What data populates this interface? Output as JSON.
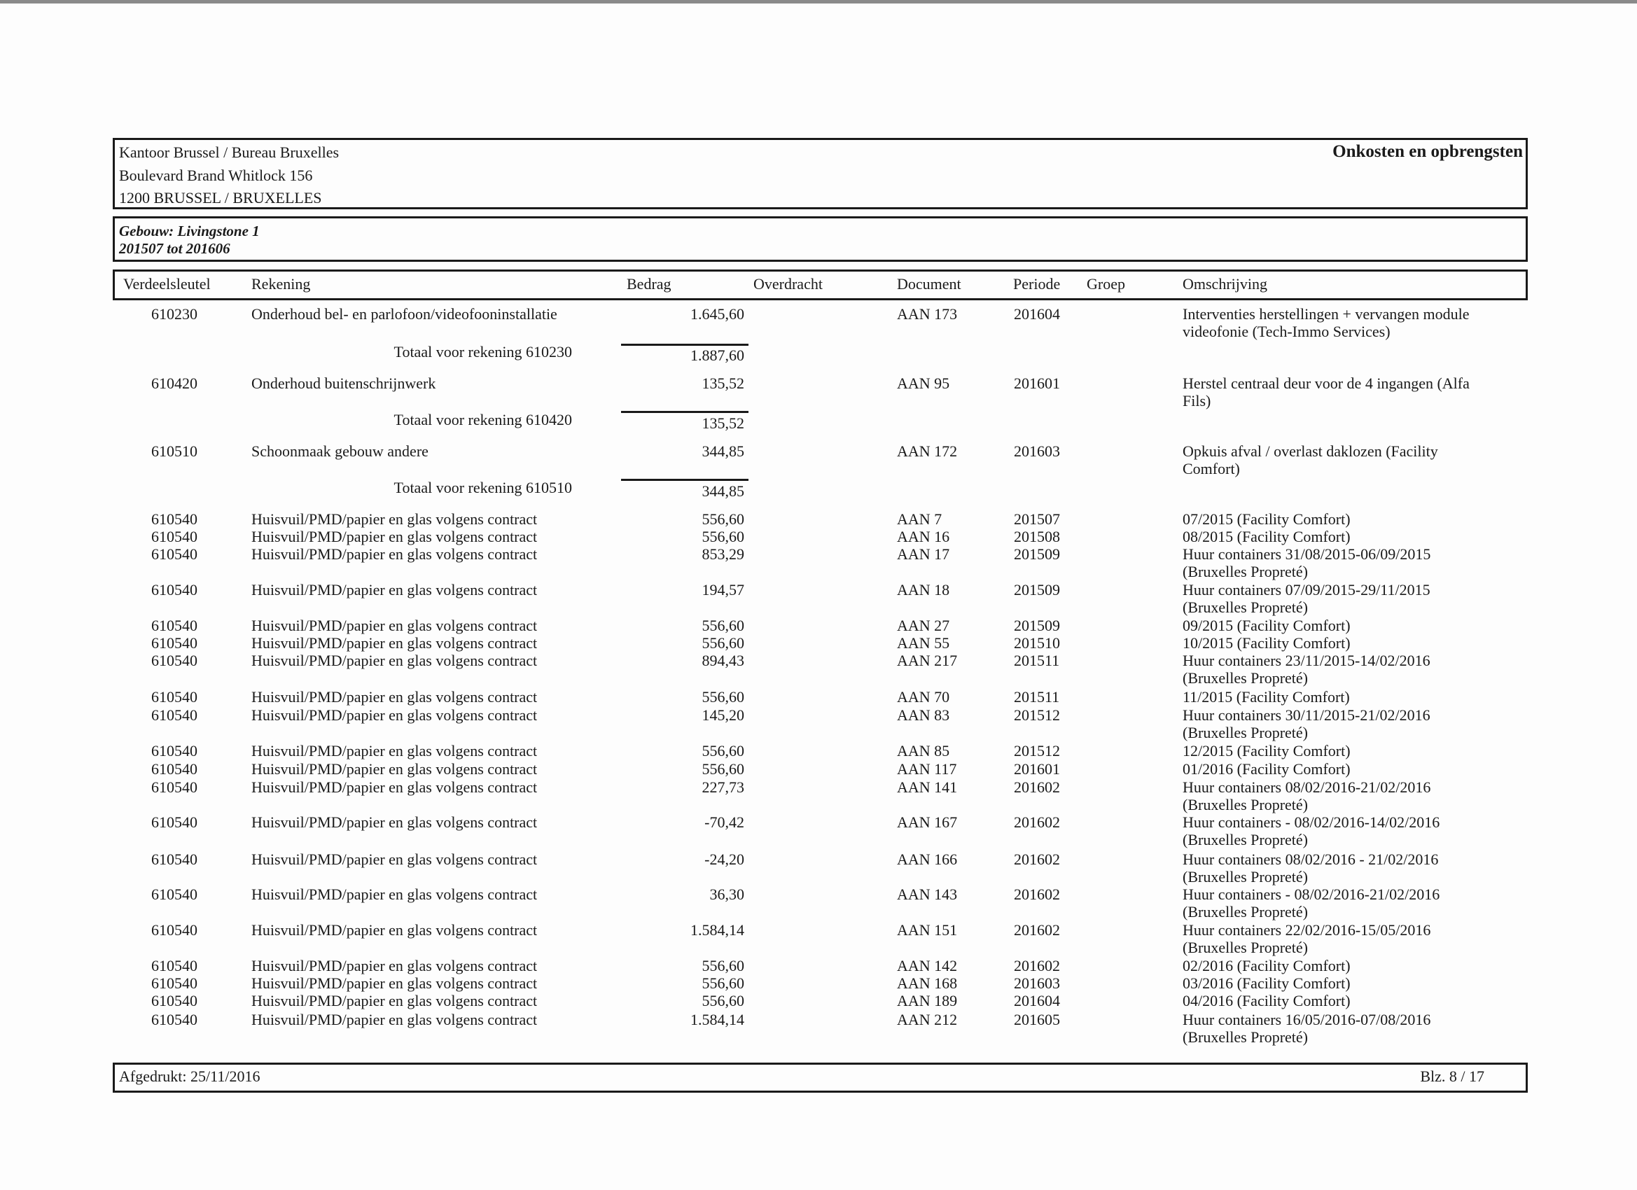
{
  "header": {
    "office_line1": "Kantoor Brussel / Bureau Bruxelles",
    "office_line2": "Boulevard Brand Whitlock 156",
    "office_line3": "1200 BRUSSEL / BRUXELLES",
    "report_title": "Onkosten en opbrengsten"
  },
  "building": {
    "name": "Gebouw: Livingstone 1",
    "period": "201507 tot 201606"
  },
  "columns": {
    "verdeelsleutel": "Verdeelsleutel",
    "rekening": "Rekening",
    "bedrag": "Bedrag",
    "overdracht": "Overdracht",
    "document": "Document",
    "periode": "Periode",
    "groep": "Groep",
    "omschrijving": "Omschrijving"
  },
  "rows": [
    {
      "type": "entry",
      "key": "610230",
      "account": "Onderhoud bel- en parlofoon/videofooninstallatie",
      "amount": "1.645,60",
      "document": "AAN 173",
      "period": "201604",
      "description": [
        "Interventies herstellingen + vervangen module",
        "videofonie (Tech-Immo Services)"
      ]
    },
    {
      "type": "total",
      "label": "Totaal voor rekening 610230",
      "amount": "1.887,60"
    },
    {
      "type": "entry",
      "key": "610420",
      "account": "Onderhoud buitenschrijnwerk",
      "amount": "135,52",
      "document": "AAN 95",
      "period": "201601",
      "description": [
        "Herstel centraal deur voor de 4 ingangen (Alfa",
        "Fils)"
      ]
    },
    {
      "type": "total",
      "label": "Totaal voor rekening 610420",
      "amount": "135,52"
    },
    {
      "type": "entry",
      "key": "610510",
      "account": "Schoonmaak gebouw andere",
      "amount": "344,85",
      "document": "AAN 172",
      "period": "201603",
      "description": [
        "Opkuis afval / overlast daklozen (Facility",
        "Comfort)"
      ]
    },
    {
      "type": "total",
      "label": "Totaal voor rekening 610510",
      "amount": "344,85"
    },
    {
      "type": "entry",
      "key": "610540",
      "account": "Huisvuil/PMD/papier en glas volgens contract",
      "amount": "556,60",
      "document": "AAN 7",
      "period": "201507",
      "description": [
        "07/2015 (Facility Comfort)"
      ]
    },
    {
      "type": "entry",
      "key": "610540",
      "account": "Huisvuil/PMD/papier en glas volgens contract",
      "amount": "556,60",
      "document": "AAN 16",
      "period": "201508",
      "description": [
        "08/2015 (Facility Comfort)"
      ]
    },
    {
      "type": "entry",
      "key": "610540",
      "account": "Huisvuil/PMD/papier en glas volgens contract",
      "amount": "853,29",
      "document": "AAN 17",
      "period": "201509",
      "description": [
        "Huur containers 31/08/2015-06/09/2015",
        "(Bruxelles Propreté)"
      ]
    },
    {
      "type": "entry",
      "key": "610540",
      "account": "Huisvuil/PMD/papier en glas volgens contract",
      "amount": "194,57",
      "document": "AAN 18",
      "period": "201509",
      "description": [
        "Huur containers 07/09/2015-29/11/2015",
        "(Bruxelles Propreté)"
      ]
    },
    {
      "type": "entry",
      "key": "610540",
      "account": "Huisvuil/PMD/papier en glas volgens contract",
      "amount": "556,60",
      "document": "AAN 27",
      "period": "201509",
      "description": [
        "09/2015 (Facility Comfort)"
      ]
    },
    {
      "type": "entry",
      "key": "610540",
      "account": "Huisvuil/PMD/papier en glas volgens contract",
      "amount": "556,60",
      "document": "AAN 55",
      "period": "201510",
      "description": [
        "10/2015 (Facility Comfort)"
      ]
    },
    {
      "type": "entry",
      "key": "610540",
      "account": "Huisvuil/PMD/papier en glas volgens contract",
      "amount": "894,43",
      "document": "AAN 217",
      "period": "201511",
      "description": [
        "Huur containers 23/11/2015-14/02/2016",
        "(Bruxelles Propreté)"
      ]
    },
    {
      "type": "entry",
      "key": "610540",
      "account": "Huisvuil/PMD/papier en glas volgens contract",
      "amount": "556,60",
      "document": "AAN 70",
      "period": "201511",
      "description": [
        "11/2015 (Facility Comfort)"
      ]
    },
    {
      "type": "entry",
      "key": "610540",
      "account": "Huisvuil/PMD/papier en glas volgens contract",
      "amount": "145,20",
      "document": "AAN 83",
      "period": "201512",
      "description": [
        "Huur containers 30/11/2015-21/02/2016",
        "(Bruxelles Propreté)"
      ]
    },
    {
      "type": "entry",
      "key": "610540",
      "account": "Huisvuil/PMD/papier en glas volgens contract",
      "amount": "556,60",
      "document": "AAN 85",
      "period": "201512",
      "description": [
        "12/2015 (Facility Comfort)"
      ]
    },
    {
      "type": "entry",
      "key": "610540",
      "account": "Huisvuil/PMD/papier en glas volgens contract",
      "amount": "556,60",
      "document": "AAN 117",
      "period": "201601",
      "description": [
        "01/2016 (Facility Comfort)"
      ]
    },
    {
      "type": "entry",
      "key": "610540",
      "account": "Huisvuil/PMD/papier en glas volgens contract",
      "amount": "227,73",
      "document": "AAN 141",
      "period": "201602",
      "description": [
        "Huur containers 08/02/2016-21/02/2016",
        "(Bruxelles Propreté)"
      ]
    },
    {
      "type": "entry",
      "key": "610540",
      "account": "Huisvuil/PMD/papier en glas volgens contract",
      "amount": "-70,42",
      "document": "AAN 167",
      "period": "201602",
      "description": [
        "Huur containers - 08/02/2016-14/02/2016",
        "(Bruxelles Propreté)"
      ]
    },
    {
      "type": "entry",
      "key": "610540",
      "account": "Huisvuil/PMD/papier en glas volgens contract",
      "amount": "-24,20",
      "document": "AAN 166",
      "period": "201602",
      "description": [
        "Huur containers 08/02/2016 - 21/02/2016",
        "(Bruxelles Propreté)"
      ]
    },
    {
      "type": "entry",
      "key": "610540",
      "account": "Huisvuil/PMD/papier en glas volgens contract",
      "amount": "36,30",
      "document": "AAN 143",
      "period": "201602",
      "description": [
        "Huur containers - 08/02/2016-21/02/2016",
        "(Bruxelles Propreté)"
      ]
    },
    {
      "type": "entry",
      "key": "610540",
      "account": "Huisvuil/PMD/papier en glas volgens contract",
      "amount": "1.584,14",
      "document": "AAN 151",
      "period": "201602",
      "description": [
        "Huur containers 22/02/2016-15/05/2016",
        "(Bruxelles Propreté)"
      ]
    },
    {
      "type": "entry",
      "key": "610540",
      "account": "Huisvuil/PMD/papier en glas volgens contract",
      "amount": "556,60",
      "document": "AAN 142",
      "period": "201602",
      "description": [
        "02/2016 (Facility Comfort)"
      ]
    },
    {
      "type": "entry",
      "key": "610540",
      "account": "Huisvuil/PMD/papier en glas volgens contract",
      "amount": "556,60",
      "document": "AAN 168",
      "period": "201603",
      "description": [
        "03/2016 (Facility Comfort)"
      ]
    },
    {
      "type": "entry",
      "key": "610540",
      "account": "Huisvuil/PMD/papier en glas volgens contract",
      "amount": "556,60",
      "document": "AAN 189",
      "period": "201604",
      "description": [
        "04/2016 (Facility Comfort)"
      ]
    },
    {
      "type": "entry",
      "key": "610540",
      "account": "Huisvuil/PMD/papier en glas volgens contract",
      "amount": "1.584,14",
      "document": "AAN 212",
      "period": "201605",
      "description": [
        "Huur containers 16/05/2016-07/08/2016",
        "(Bruxelles Propreté)"
      ]
    }
  ],
  "footer": {
    "printed": "Afgedrukt: 25/11/2016",
    "page": "Blz. 8 / 17"
  }
}
